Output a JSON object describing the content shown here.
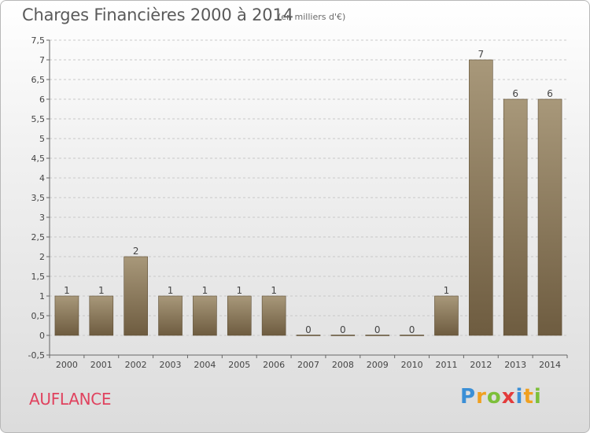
{
  "chart_data": {
    "type": "bar",
    "title": "Charges Financières 2000 à 2014",
    "subtitle": "(en milliers d'€)",
    "categories": [
      "2000",
      "2001",
      "2002",
      "2003",
      "2004",
      "2005",
      "2006",
      "2007",
      "2008",
      "2009",
      "2010",
      "2011",
      "2012",
      "2013",
      "2014"
    ],
    "values": [
      1,
      1,
      2,
      1,
      1,
      1,
      1,
      0,
      0,
      0,
      0,
      1,
      7,
      6,
      6
    ],
    "data_labels": [
      "1",
      "1",
      "2",
      "1",
      "1",
      "1",
      "1",
      "0",
      "0",
      "0",
      "0",
      "1",
      "7",
      "6",
      "6"
    ],
    "ylim": [
      -0.5,
      7.5
    ],
    "yticks": [
      -0.5,
      0,
      0.5,
      1,
      1.5,
      2,
      2.5,
      3,
      3.5,
      4,
      4.5,
      5,
      5.5,
      6,
      6.5,
      7,
      7.5
    ],
    "ytick_labels": [
      "-0,5",
      "0",
      "0,5",
      "1",
      "1,5",
      "2",
      "2,5",
      "3",
      "3,5",
      "4",
      "4,5",
      "5",
      "5,5",
      "6",
      "6,5",
      "7",
      "7,5"
    ],
    "grid": true,
    "bar_color": "#8a7a5e"
  },
  "footer": {
    "place": "AUFLANCE",
    "logo_letters": [
      "P",
      "r",
      "o",
      "x",
      "i",
      "t",
      "i"
    ],
    "logo_colors": [
      "#3b8fd6",
      "#f0a020",
      "#7dbf3a",
      "#e33b3b",
      "#3b8fd6",
      "#f0a020",
      "#7dbf3a"
    ]
  }
}
